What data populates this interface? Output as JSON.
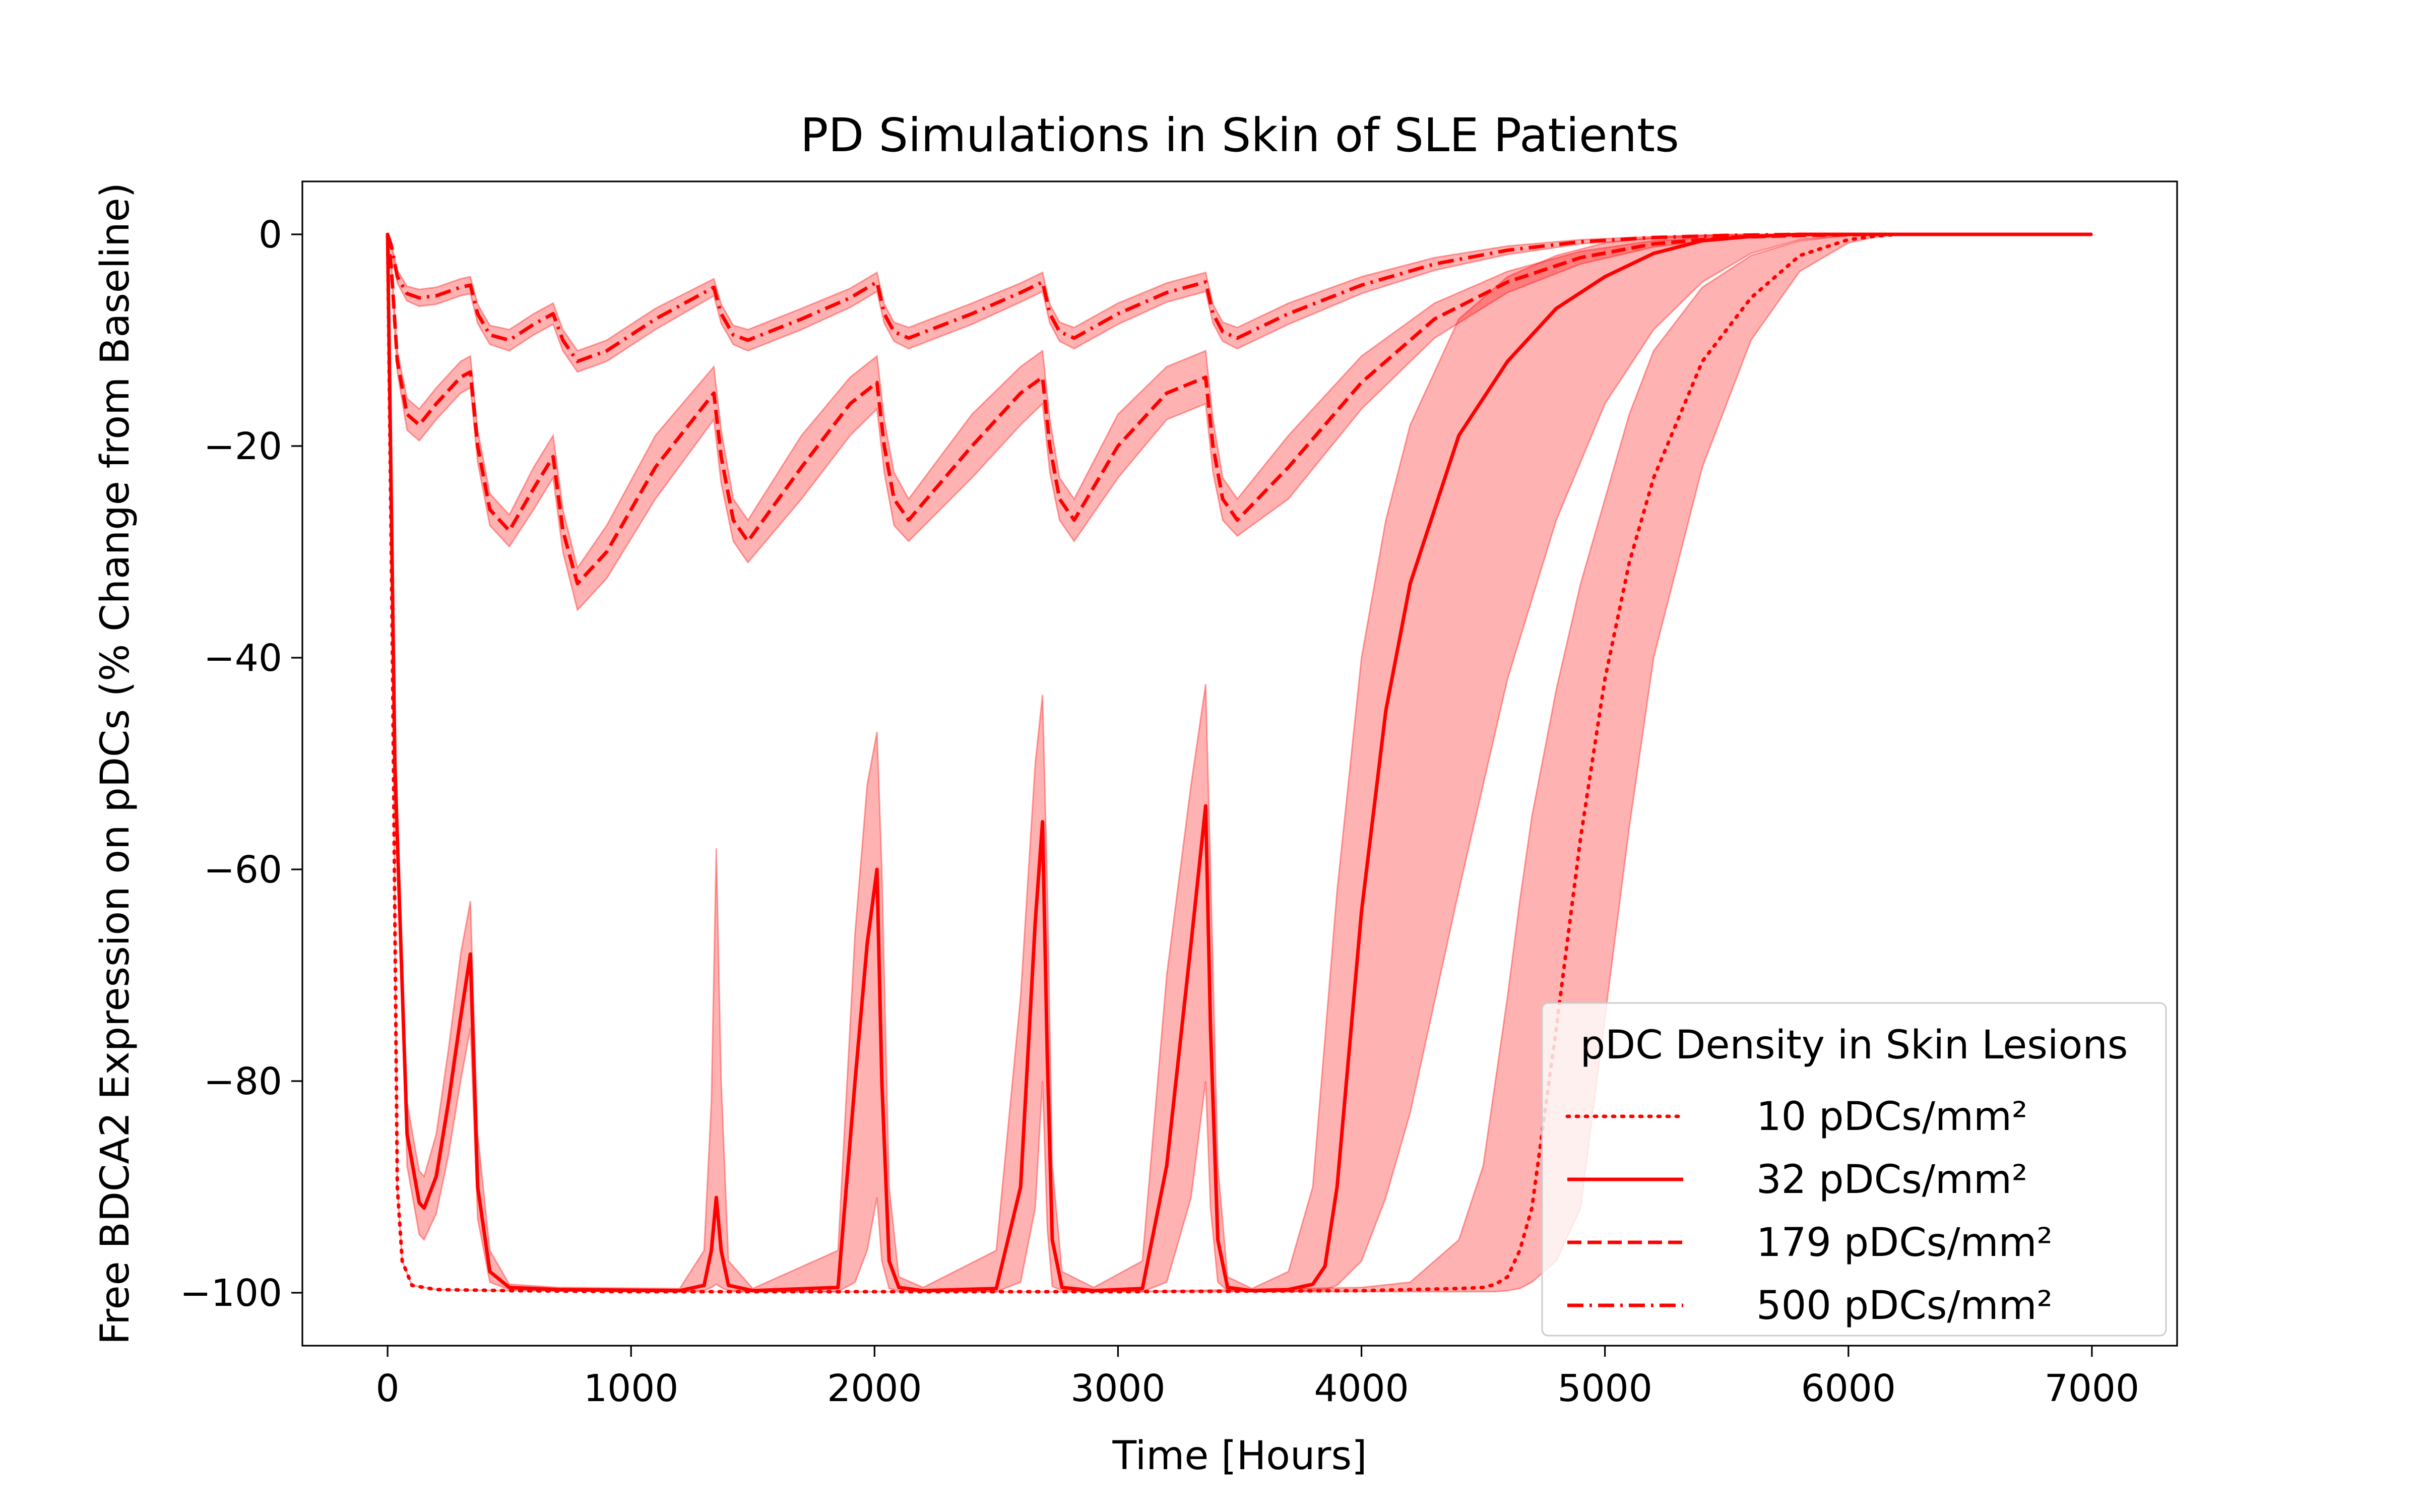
{
  "chart_data": {
    "type": "line",
    "title": "PD Simulations in Skin of SLE Patients",
    "xlabel": "Time [Hours]",
    "ylabel": "Free BDCA2 Expression on pDCs (% Change from Baseline)",
    "xlim": [
      -350,
      7350
    ],
    "ylim": [
      -105,
      5
    ],
    "xticks": [
      0,
      1000,
      2000,
      3000,
      4000,
      5000,
      6000,
      7000
    ],
    "yticks": [
      0,
      -20,
      -40,
      -60,
      -80,
      -100
    ],
    "xtick_labels": [
      "0",
      "1000",
      "2000",
      "3000",
      "4000",
      "5000",
      "6000",
      "7000"
    ],
    "ytick_labels": [
      "0",
      "−20",
      "−40",
      "−60",
      "−80",
      "−100"
    ],
    "grid": false,
    "legend": {
      "title": "pDC Density in Skin Lesions",
      "placement": "lower-right"
    },
    "line_color": "#ff0000",
    "band_color": "#ff0000",
    "series": [
      {
        "name": "10 pDCs/mm²",
        "style": "dotted",
        "x": [
          0,
          20,
          40,
          60,
          100,
          200,
          500,
          1000,
          2000,
          3000,
          4000,
          4200,
          4400,
          4500,
          4550,
          4600,
          4650,
          4700,
          4800,
          4900,
          5000,
          5100,
          5200,
          5400,
          5600,
          5800,
          6000,
          6100,
          6200,
          7000
        ],
        "y": [
          0,
          -40,
          -90,
          -97,
          -99.3,
          -99.7,
          -99.8,
          -99.9,
          -99.9,
          -99.9,
          -99.8,
          -99.7,
          -99.6,
          -99.5,
          -99.2,
          -98.5,
          -96,
          -92,
          -75,
          -57,
          -42,
          -31,
          -23,
          -12,
          -6,
          -2,
          -0.5,
          -0.2,
          0,
          0
        ],
        "lower": [
          0,
          -40,
          -90,
          -97,
          -99.3,
          -99.7,
          -99.8,
          -99.9,
          -99.9,
          -99.9,
          -99.9,
          -99.9,
          -99.9,
          -99.9,
          -99.9,
          -99.8,
          -99.6,
          -99,
          -97,
          -92,
          -74,
          -56,
          -40,
          -22,
          -10,
          -3.5,
          -0.8,
          -0.3,
          0,
          0
        ],
        "upper": [
          0,
          -40,
          -90,
          -97,
          -99.3,
          -99.7,
          -99.8,
          -99.9,
          -99.9,
          -99.9,
          -99.5,
          -99,
          -95,
          -88,
          -80,
          -72,
          -63,
          -55,
          -43,
          -33,
          -25,
          -17,
          -11,
          -5,
          -2,
          -0.6,
          -0.1,
          0,
          0,
          0
        ]
      },
      {
        "name": "32 pDCs/mm²",
        "style": "solid",
        "x": [
          0,
          30,
          80,
          130,
          150,
          200,
          250,
          300,
          340,
          370,
          420,
          500,
          700,
          1200,
          1300,
          1330,
          1350,
          1370,
          1400,
          1500,
          1850,
          1920,
          1970,
          2010,
          2030,
          2060,
          2100,
          2200,
          2500,
          2600,
          2660,
          2690,
          2710,
          2730,
          2770,
          2900,
          3100,
          3200,
          3300,
          3360,
          3380,
          3410,
          3450,
          3550,
          3700,
          3800,
          3850,
          3900,
          4000,
          4100,
          4200,
          4400,
          4600,
          4800,
          5000,
          5200,
          5400,
          5600,
          5800,
          6000,
          6200,
          7000
        ],
        "y": [
          0,
          -50,
          -85,
          -91.5,
          -92,
          -89,
          -82,
          -74,
          -68,
          -90,
          -98,
          -99.5,
          -99.7,
          -99.8,
          -99.3,
          -96,
          -91,
          -96,
          -99.3,
          -99.8,
          -99.5,
          -80,
          -67,
          -60,
          -80,
          -97,
          -99.5,
          -99.8,
          -99.6,
          -90,
          -65,
          -55.5,
          -78,
          -95,
          -99.5,
          -99.8,
          -99.6,
          -88,
          -67,
          -54,
          -75,
          -95,
          -99.5,
          -99.8,
          -99.7,
          -99.2,
          -97.5,
          -90,
          -64,
          -45,
          -33,
          -19,
          -12,
          -7,
          -4,
          -1.8,
          -0.6,
          -0.2,
          0,
          0,
          0,
          0
        ],
        "lower": [
          0,
          -50,
          -88,
          -94.5,
          -95,
          -92.5,
          -87,
          -80,
          -75,
          -93,
          -99,
          -99.7,
          -99.8,
          -99.9,
          -99.8,
          -99.5,
          -99.2,
          -99.5,
          -99.8,
          -99.9,
          -99.9,
          -99,
          -96,
          -91,
          -97,
          -99.6,
          -99.8,
          -99.9,
          -99.9,
          -99,
          -92,
          -80,
          -94,
          -99.4,
          -99.8,
          -99.9,
          -99.9,
          -99,
          -91,
          -80,
          -92,
          -99,
          -99.8,
          -99.9,
          -99.9,
          -99.8,
          -99.7,
          -99.3,
          -97,
          -91,
          -83,
          -62,
          -42,
          -27,
          -16,
          -9,
          -4.5,
          -1.8,
          -0.5,
          -0.1,
          0,
          0
        ],
        "upper": [
          0,
          -50,
          -82,
          -88.5,
          -89,
          -85,
          -77,
          -68,
          -63,
          -85,
          -96,
          -99.2,
          -99.5,
          -99.6,
          -96,
          -82,
          -58,
          -80,
          -97,
          -99.6,
          -96,
          -66,
          -52,
          -47,
          -60,
          -90,
          -98.5,
          -99.5,
          -96,
          -72,
          -50,
          -43.5,
          -62,
          -88,
          -98,
          -99.5,
          -97,
          -70,
          -52,
          -42.5,
          -60,
          -88,
          -98.5,
          -99.6,
          -98,
          -90,
          -76,
          -62,
          -40,
          -27,
          -18,
          -8,
          -4,
          -2,
          -0.8,
          -0.3,
          -0.1,
          0,
          0,
          0,
          0,
          0
        ]
      },
      {
        "name": "179 pDCs/mm²",
        "style": "dashed",
        "x": [
          0,
          15,
          40,
          80,
          130,
          200,
          300,
          340,
          370,
          420,
          500,
          600,
          680,
          720,
          780,
          900,
          1100,
          1340,
          1370,
          1420,
          1480,
          1700,
          1900,
          2010,
          2040,
          2080,
          2140,
          2400,
          2600,
          2690,
          2720,
          2760,
          2820,
          3000,
          3200,
          3360,
          3390,
          3430,
          3490,
          3700,
          4000,
          4300,
          4600,
          4900,
          5200,
          5500,
          5800,
          6100,
          7000
        ],
        "y": [
          0,
          -3,
          -12,
          -17,
          -18,
          -16,
          -13.5,
          -13,
          -20,
          -26,
          -28,
          -24,
          -21,
          -28,
          -33,
          -30,
          -22,
          -15,
          -21,
          -27,
          -29,
          -22,
          -16,
          -14,
          -20,
          -25,
          -27,
          -20,
          -15,
          -13.5,
          -20,
          -25,
          -27,
          -20,
          -15,
          -13.5,
          -20,
          -25,
          -27,
          -22,
          -14,
          -8,
          -4.5,
          -2.2,
          -0.9,
          -0.3,
          -0.1,
          0,
          0
        ],
        "lower": [
          0,
          -3.5,
          -13,
          -18.5,
          -19.5,
          -17.5,
          -15,
          -14.5,
          -21.5,
          -27.5,
          -29.5,
          -26,
          -23,
          -30,
          -35.5,
          -32.5,
          -25,
          -17.5,
          -23.5,
          -29,
          -31,
          -25,
          -19,
          -16.5,
          -22.5,
          -27.5,
          -29,
          -23,
          -18,
          -16,
          -22.5,
          -27,
          -29,
          -23,
          -17.5,
          -16,
          -22.5,
          -27,
          -28.5,
          -25,
          -16.5,
          -9.8,
          -5.5,
          -2.8,
          -1.2,
          -0.4,
          -0.1,
          0,
          0
        ],
        "upper": [
          0,
          -2.5,
          -11,
          -15.5,
          -16.5,
          -14.5,
          -12,
          -11.5,
          -18.5,
          -24.5,
          -26.5,
          -22,
          -19,
          -26,
          -31.5,
          -27.5,
          -19,
          -12.5,
          -18.5,
          -25,
          -27,
          -19,
          -13.5,
          -11.5,
          -17.5,
          -22.5,
          -25,
          -17,
          -12.5,
          -11,
          -17.5,
          -23,
          -25,
          -17,
          -12.5,
          -11,
          -17.5,
          -23,
          -25,
          -19,
          -11.5,
          -6.5,
          -3.5,
          -1.6,
          -0.6,
          -0.2,
          0,
          0,
          0
        ]
      },
      {
        "name": "500 pDCs/mm²",
        "style": "dashdot",
        "x": [
          0,
          15,
          40,
          80,
          130,
          200,
          300,
          340,
          370,
          420,
          500,
          600,
          680,
          720,
          780,
          900,
          1100,
          1340,
          1370,
          1420,
          1480,
          1700,
          1900,
          2010,
          2040,
          2080,
          2140,
          2400,
          2600,
          2690,
          2720,
          2760,
          2820,
          3000,
          3200,
          3360,
          3390,
          3430,
          3490,
          3700,
          4000,
          4300,
          4600,
          4900,
          5200,
          5500,
          5800,
          7000
        ],
        "y": [
          0,
          -1,
          -4,
          -5.6,
          -6,
          -5.8,
          -5,
          -4.8,
          -7.5,
          -9.5,
          -10,
          -8.5,
          -7.5,
          -10,
          -12,
          -11,
          -8,
          -5,
          -7.5,
          -9.5,
          -10,
          -8,
          -6,
          -4.5,
          -7.5,
          -9.2,
          -9.8,
          -7.5,
          -5.5,
          -4.5,
          -7.5,
          -9.2,
          -9.8,
          -7.5,
          -5.5,
          -4.5,
          -7.5,
          -9.2,
          -9.8,
          -7.5,
          -4.8,
          -2.8,
          -1.5,
          -0.7,
          -0.3,
          -0.1,
          0,
          0
        ],
        "lower": [
          0,
          -1.2,
          -4.6,
          -6.3,
          -6.8,
          -6.6,
          -5.8,
          -5.6,
          -8.4,
          -10.4,
          -11,
          -9.5,
          -8.5,
          -11,
          -13,
          -12,
          -9,
          -5.8,
          -8.4,
          -10.4,
          -11,
          -9,
          -6.9,
          -5.4,
          -8.4,
          -10.1,
          -10.8,
          -8.5,
          -6.4,
          -5.4,
          -8.4,
          -10.1,
          -10.8,
          -8.5,
          -6.4,
          -5.4,
          -8.4,
          -10.1,
          -10.8,
          -8.5,
          -5.6,
          -3.4,
          -1.9,
          -0.9,
          -0.4,
          -0.1,
          0,
          0
        ],
        "upper": [
          0,
          -0.8,
          -3.4,
          -4.9,
          -5.2,
          -5,
          -4.2,
          -4,
          -6.6,
          -8.6,
          -9,
          -7.5,
          -6.5,
          -9,
          -11,
          -10,
          -7,
          -4.2,
          -6.6,
          -8.6,
          -9,
          -7,
          -5.1,
          -3.6,
          -6.6,
          -8.3,
          -8.8,
          -6.5,
          -4.6,
          -3.6,
          -6.6,
          -8.3,
          -8.8,
          -6.5,
          -4.6,
          -3.6,
          -6.6,
          -8.3,
          -8.8,
          -6.5,
          -4,
          -2.2,
          -1.1,
          -0.5,
          -0.2,
          0,
          0,
          0
        ]
      }
    ]
  }
}
